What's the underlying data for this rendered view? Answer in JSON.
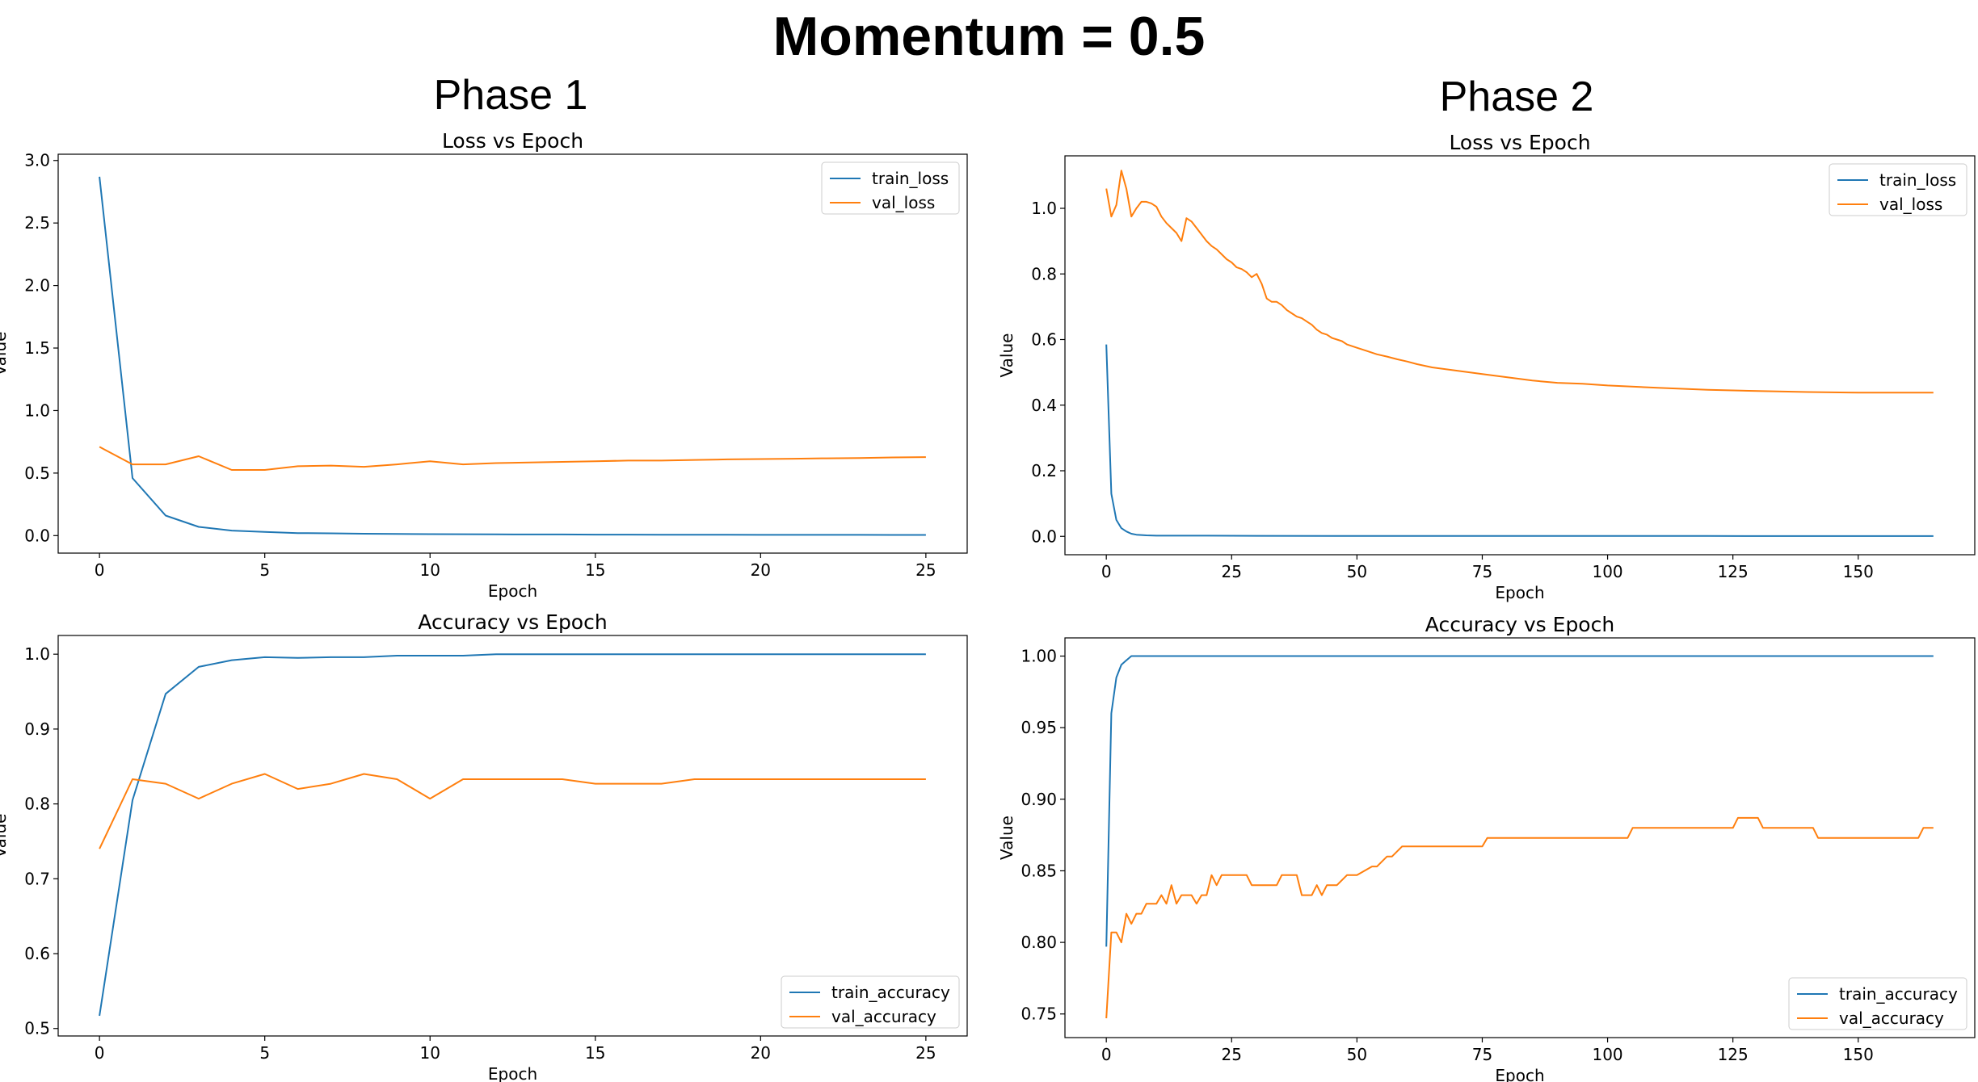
{
  "title": "Momentum = 0.5",
  "phases": [
    "Phase 1",
    "Phase 2"
  ],
  "colors": {
    "train": "#1f77b4",
    "val": "#ff7f0e"
  },
  "chart_data": [
    {
      "type": "line",
      "title": "Loss vs Epoch",
      "xlabel": "Epoch",
      "ylabel": "Value",
      "xlim": [
        -1.25,
        26.25
      ],
      "ylim": [
        -0.14,
        3.05
      ],
      "xticks": [
        0,
        5,
        10,
        15,
        20,
        25
      ],
      "yticks": [
        0.0,
        0.5,
        1.0,
        1.5,
        2.0,
        2.5,
        3.0
      ],
      "ytick_decimals": 1,
      "legend": "upper right",
      "series": [
        {
          "name": "train_loss",
          "color": "#1f77b4",
          "x": [
            0,
            1,
            2,
            3,
            4,
            5,
            6,
            7,
            8,
            9,
            10,
            11,
            12,
            13,
            14,
            15,
            16,
            17,
            18,
            19,
            20,
            21,
            22,
            23,
            24,
            25
          ],
          "y": [
            2.87,
            0.46,
            0.16,
            0.07,
            0.04,
            0.03,
            0.02,
            0.018,
            0.015,
            0.013,
            0.012,
            0.011,
            0.01,
            0.009,
            0.009,
            0.008,
            0.008,
            0.007,
            0.007,
            0.007,
            0.006,
            0.006,
            0.006,
            0.006,
            0.005,
            0.005
          ]
        },
        {
          "name": "val_loss",
          "color": "#ff7f0e",
          "x": [
            0,
            1,
            2,
            3,
            4,
            5,
            6,
            7,
            8,
            9,
            10,
            11,
            12,
            13,
            14,
            15,
            16,
            17,
            18,
            19,
            20,
            21,
            22,
            23,
            24,
            25
          ],
          "y": [
            0.71,
            0.57,
            0.57,
            0.635,
            0.525,
            0.525,
            0.555,
            0.56,
            0.55,
            0.57,
            0.595,
            0.57,
            0.58,
            0.585,
            0.59,
            0.595,
            0.6,
            0.6,
            0.605,
            0.61,
            0.612,
            0.615,
            0.618,
            0.62,
            0.625,
            0.628
          ]
        }
      ]
    },
    {
      "type": "line",
      "title": "Loss vs Epoch",
      "xlabel": "Epoch",
      "ylabel": "Value",
      "xlim": [
        -8.25,
        173.25
      ],
      "ylim": [
        -0.056,
        1.16
      ],
      "xticks": [
        0,
        25,
        50,
        75,
        100,
        125,
        150
      ],
      "yticks": [
        0.0,
        0.2,
        0.4,
        0.6,
        0.8,
        1.0
      ],
      "ytick_decimals": 1,
      "legend": "upper right",
      "series": [
        {
          "name": "train_loss",
          "color": "#1f77b4",
          "x": [
            0,
            1,
            2,
            3,
            4,
            5,
            6,
            8,
            10,
            15,
            20,
            30,
            50,
            80,
            120,
            165
          ],
          "y": [
            0.585,
            0.13,
            0.05,
            0.025,
            0.015,
            0.008,
            0.005,
            0.003,
            0.002,
            0.002,
            0.002,
            0.0015,
            0.001,
            0.001,
            0.001,
            0.0008
          ]
        },
        {
          "name": "val_loss",
          "color": "#ff7f0e",
          "x": [
            0,
            1,
            2,
            3,
            4,
            5,
            6,
            7,
            8,
            9,
            10,
            11,
            12,
            13,
            14,
            15,
            16,
            17,
            18,
            19,
            20,
            21,
            22,
            23,
            24,
            25,
            26,
            27,
            28,
            29,
            30,
            31,
            32,
            33,
            34,
            35,
            36,
            37,
            38,
            39,
            40,
            41,
            42,
            43,
            44,
            45,
            46,
            47,
            48,
            50,
            52,
            54,
            56,
            58,
            60,
            62,
            65,
            70,
            75,
            80,
            85,
            90,
            95,
            100,
            110,
            120,
            130,
            140,
            150,
            165
          ],
          "y": [
            1.06,
            0.975,
            1.01,
            1.115,
            1.06,
            0.975,
            1.0,
            1.02,
            1.02,
            1.015,
            1.005,
            0.975,
            0.955,
            0.94,
            0.925,
            0.9,
            0.97,
            0.96,
            0.94,
            0.92,
            0.9,
            0.885,
            0.875,
            0.86,
            0.845,
            0.835,
            0.82,
            0.815,
            0.805,
            0.79,
            0.8,
            0.77,
            0.725,
            0.715,
            0.715,
            0.705,
            0.69,
            0.68,
            0.67,
            0.665,
            0.655,
            0.645,
            0.63,
            0.62,
            0.615,
            0.605,
            0.6,
            0.595,
            0.585,
            0.575,
            0.565,
            0.555,
            0.548,
            0.54,
            0.533,
            0.525,
            0.515,
            0.505,
            0.495,
            0.485,
            0.475,
            0.468,
            0.465,
            0.46,
            0.453,
            0.447,
            0.443,
            0.44,
            0.438,
            0.438
          ]
        }
      ]
    },
    {
      "type": "line",
      "title": "Accuracy vs Epoch",
      "xlabel": "Epoch",
      "ylabel": "Value",
      "xlim": [
        -1.25,
        26.25
      ],
      "ylim": [
        0.49,
        1.025
      ],
      "xticks": [
        0,
        5,
        10,
        15,
        20,
        25
      ],
      "yticks": [
        0.5,
        0.6,
        0.7,
        0.8,
        0.9,
        1.0
      ],
      "ytick_decimals": 1,
      "legend": "lower right",
      "series": [
        {
          "name": "train_accuracy",
          "color": "#1f77b4",
          "x": [
            0,
            1,
            2,
            3,
            4,
            5,
            6,
            7,
            8,
            9,
            10,
            11,
            12,
            13,
            14,
            15,
            16,
            17,
            18,
            19,
            20,
            21,
            22,
            23,
            24,
            25
          ],
          "y": [
            0.517,
            0.805,
            0.947,
            0.983,
            0.992,
            0.996,
            0.995,
            0.996,
            0.996,
            0.998,
            0.998,
            0.998,
            1.0,
            1.0,
            1.0,
            1.0,
            1.0,
            1.0,
            1.0,
            1.0,
            1.0,
            1.0,
            1.0,
            1.0,
            1.0,
            1.0
          ]
        },
        {
          "name": "val_accuracy",
          "color": "#ff7f0e",
          "x": [
            0,
            1,
            2,
            3,
            4,
            5,
            6,
            7,
            8,
            9,
            10,
            11,
            12,
            13,
            14,
            15,
            16,
            17,
            18,
            19,
            20,
            21,
            22,
            23,
            24,
            25
          ],
          "y": [
            0.74,
            0.833,
            0.827,
            0.807,
            0.827,
            0.84,
            0.82,
            0.827,
            0.84,
            0.833,
            0.807,
            0.833,
            0.833,
            0.833,
            0.833,
            0.827,
            0.827,
            0.827,
            0.833,
            0.833,
            0.833,
            0.833,
            0.833,
            0.833,
            0.833,
            0.833
          ]
        }
      ]
    },
    {
      "type": "line",
      "title": "Accuracy vs Epoch",
      "xlabel": "Epoch",
      "ylabel": "Value",
      "xlim": [
        -8.25,
        173.25
      ],
      "ylim": [
        0.7335,
        1.0127
      ],
      "xticks": [
        0,
        25,
        50,
        75,
        100,
        125,
        150
      ],
      "yticks": [
        0.75,
        0.8,
        0.85,
        0.9,
        0.95,
        1.0
      ],
      "ytick_decimals": 2,
      "legend": "lower right",
      "series": [
        {
          "name": "train_accuracy",
          "color": "#1f77b4",
          "x": [
            0,
            1,
            2,
            3,
            4,
            5,
            6,
            10,
            20,
            50,
            100,
            165
          ],
          "y": [
            0.797,
            0.96,
            0.985,
            0.994,
            0.997,
            1.0,
            1.0,
            1.0,
            1.0,
            1.0,
            1.0,
            1.0
          ]
        },
        {
          "name": "val_accuracy",
          "color": "#ff7f0e",
          "x": [
            0,
            1,
            2,
            3,
            4,
            5,
            6,
            7,
            8,
            9,
            10,
            11,
            12,
            13,
            14,
            15,
            16,
            17,
            18,
            19,
            20,
            21,
            22,
            23,
            24,
            25,
            28,
            29,
            30,
            31,
            34,
            35,
            38,
            39,
            40,
            41,
            42,
            43,
            44,
            45,
            46,
            48,
            49,
            50,
            53,
            54,
            56,
            57,
            59,
            60,
            75,
            76,
            104,
            105,
            125,
            126,
            130,
            131,
            140,
            141,
            142,
            143,
            162,
            163,
            165
          ],
          "y": [
            0.747,
            0.807,
            0.807,
            0.8,
            0.82,
            0.813,
            0.82,
            0.82,
            0.827,
            0.827,
            0.827,
            0.833,
            0.827,
            0.84,
            0.827,
            0.833,
            0.833,
            0.833,
            0.827,
            0.833,
            0.833,
            0.847,
            0.84,
            0.847,
            0.847,
            0.847,
            0.847,
            0.84,
            0.84,
            0.84,
            0.84,
            0.847,
            0.847,
            0.833,
            0.833,
            0.833,
            0.84,
            0.833,
            0.84,
            0.84,
            0.84,
            0.847,
            0.847,
            0.847,
            0.853,
            0.853,
            0.86,
            0.86,
            0.867,
            0.867,
            0.867,
            0.873,
            0.873,
            0.88,
            0.88,
            0.887,
            0.887,
            0.88,
            0.88,
            0.88,
            0.873,
            0.873,
            0.873,
            0.88,
            0.88
          ]
        }
      ]
    }
  ]
}
